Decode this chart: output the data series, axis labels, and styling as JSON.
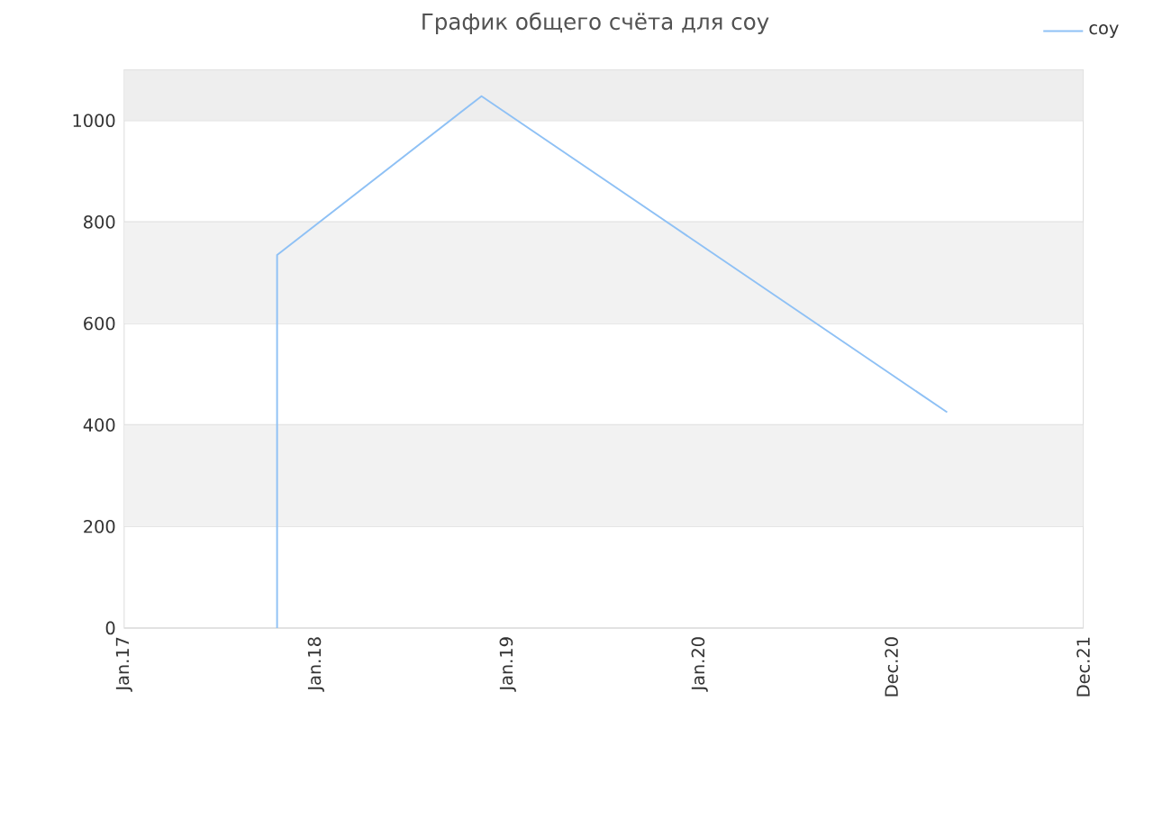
{
  "chart_data": {
    "type": "line",
    "title": "График общего счёта для coy",
    "x": [
      "2017-10-19",
      "2017-10-19",
      "2018-11-12",
      "2021-04-16"
    ],
    "series": [
      {
        "name": "coy",
        "color": "#8fc1f5",
        "values": [
          0,
          735,
          1048,
          425
        ]
      }
    ],
    "xlim": [
      "2017-01-01",
      "2021-12-31"
    ],
    "xticks": [
      {
        "value": "2017-01-01",
        "label": "Jan.17"
      },
      {
        "value": "2018-01-01",
        "label": "Jan.18"
      },
      {
        "value": "2019-01-01",
        "label": "Jan.19"
      },
      {
        "value": "2020-01-01",
        "label": "Jan.20"
      },
      {
        "value": "2020-12-31",
        "label": "Dec.20"
      },
      {
        "value": "2021-12-31",
        "label": "Dec.21"
      }
    ],
    "ylim": [
      0,
      1100
    ],
    "yticks": [
      0,
      200,
      400,
      600,
      800,
      1000
    ],
    "bands": [
      {
        "axis": "y",
        "from": 200,
        "to": 400,
        "color": "#f2f2f2"
      },
      {
        "axis": "y",
        "from": 600,
        "to": 800,
        "color": "#f2f2f2"
      },
      {
        "axis": "y",
        "from": 1000,
        "to": 1100,
        "color": "#eeeeee"
      }
    ],
    "grid": "y",
    "legend": "top right",
    "marker": "none",
    "line_style": "solid"
  }
}
